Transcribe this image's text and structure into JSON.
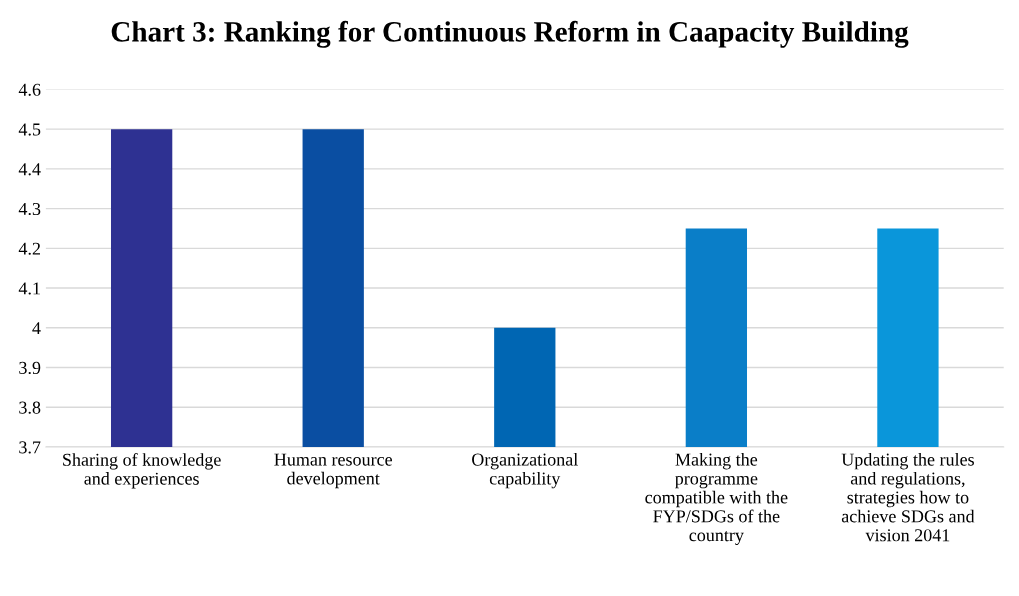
{
  "chart_data": {
    "type": "bar",
    "title": "Chart 3: Ranking for Continuous Reform in Caapacity Building",
    "categories": [
      "Sharing of knowledge and experiences",
      "Human resource development",
      "Organizational capability",
      "Making the programme compatible with the FYP/SDGs of the country",
      "Updating the rules and regulations, strategies how to achieve SDGs and vision 2041"
    ],
    "values": [
      4.5,
      4.5,
      4.0,
      4.25,
      4.25
    ],
    "colors": [
      "#2e3192",
      "#0a4ea2",
      "#0066b3",
      "#0a7ec8",
      "#0a96da"
    ],
    "ylim": [
      3.7,
      4.6
    ],
    "yticks": [
      3.7,
      3.8,
      3.9,
      4,
      4.1,
      4.2,
      4.3,
      4.4,
      4.5,
      4.6
    ],
    "grid": "y",
    "legend": false
  }
}
